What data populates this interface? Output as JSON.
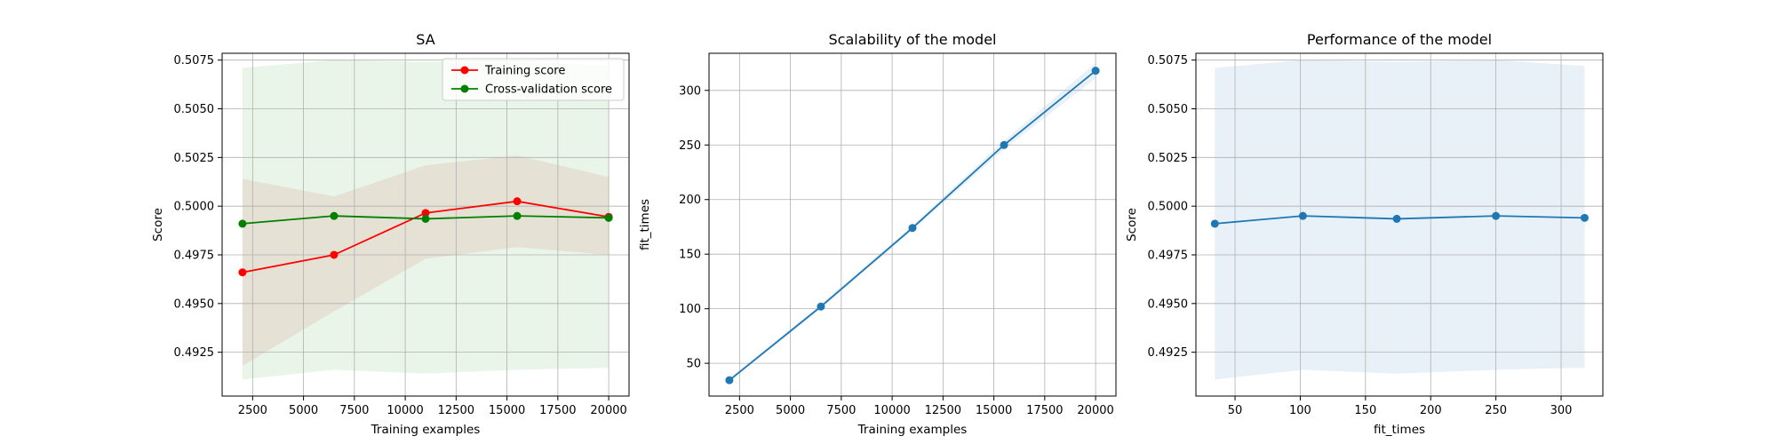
{
  "chart_data": [
    {
      "type": "line",
      "title": "SA",
      "xlabel": "Training examples",
      "ylabel": "Score",
      "xlim": [
        1000,
        21000
      ],
      "ylim": [
        0.49025,
        0.50785
      ],
      "xticks": [
        2500,
        5000,
        7500,
        10000,
        12500,
        15000,
        17500,
        20000
      ],
      "xtick_labels": [
        "2500",
        "5000",
        "7500",
        "10000",
        "12500",
        "15000",
        "17500",
        "20000"
      ],
      "yticks": [
        0.4925,
        0.495,
        0.4975,
        0.5,
        0.5025,
        0.505,
        0.5075
      ],
      "ytick_labels": [
        "0.4925",
        "0.4950",
        "0.4975",
        "0.5000",
        "0.5025",
        "0.5050",
        "0.5075"
      ],
      "grid": true,
      "legend": "top-right",
      "x": [
        2000,
        6500,
        11000,
        15500,
        20000
      ],
      "series": [
        {
          "name": "Training score",
          "color": "#ff0000",
          "band_color": "#d62728",
          "values": [
            0.4966,
            0.4975,
            0.49965,
            0.50025,
            0.49945
          ],
          "band_low": [
            0.4918,
            0.4946,
            0.4973,
            0.4979,
            0.4975
          ],
          "band_high": [
            0.5014,
            0.5005,
            0.5021,
            0.5026,
            0.5015
          ]
        },
        {
          "name": "Cross-validation score",
          "color": "#008000",
          "band_color": "#2ca02c",
          "values": [
            0.4991,
            0.4995,
            0.49935,
            0.4995,
            0.4994
          ],
          "band_low": [
            0.4911,
            0.4916,
            0.4914,
            0.4916,
            0.4917
          ],
          "band_high": [
            0.5071,
            0.5075,
            0.5074,
            0.5075,
            0.5072
          ]
        }
      ]
    },
    {
      "type": "line",
      "title": "Scalability of the model",
      "xlabel": "Training examples",
      "ylabel": "fit_times",
      "xlim": [
        1000,
        21000
      ],
      "ylim": [
        20,
        334
      ],
      "xticks": [
        2500,
        5000,
        7500,
        10000,
        12500,
        15000,
        17500,
        20000
      ],
      "xtick_labels": [
        "2500",
        "5000",
        "7500",
        "10000",
        "12500",
        "15000",
        "17500",
        "20000"
      ],
      "yticks": [
        50,
        100,
        150,
        200,
        250,
        300
      ],
      "ytick_labels": [
        "50",
        "100",
        "150",
        "200",
        "250",
        "300"
      ],
      "grid": true,
      "x": [
        2000,
        6500,
        11000,
        15500,
        20000
      ],
      "series": [
        {
          "color": "#1f77b4",
          "values": [
            34.5,
            102,
            174,
            250,
            318
          ],
          "band_low": [
            33,
            100,
            172,
            246,
            311
          ],
          "band_high": [
            36,
            104,
            176,
            254,
            325
          ]
        }
      ]
    },
    {
      "type": "line",
      "title": "Performance of the model",
      "xlabel": "fit_times",
      "ylabel": "Score",
      "xlim": [
        20,
        332
      ],
      "ylim": [
        0.49025,
        0.50785
      ],
      "xticks": [
        50,
        100,
        150,
        200,
        250,
        300
      ],
      "xtick_labels": [
        "50",
        "100",
        "150",
        "200",
        "250",
        "300"
      ],
      "yticks": [
        0.4925,
        0.495,
        0.4975,
        0.5,
        0.5025,
        0.505,
        0.5075
      ],
      "ytick_labels": [
        "0.4925",
        "0.4950",
        "0.4975",
        "0.5000",
        "0.5025",
        "0.5050",
        "0.5075"
      ],
      "grid": true,
      "x": [
        34.5,
        102,
        174,
        250,
        318
      ],
      "series": [
        {
          "color": "#1f77b4",
          "values": [
            0.4991,
            0.4995,
            0.49935,
            0.4995,
            0.4994
          ],
          "band_low": [
            0.4911,
            0.4916,
            0.4914,
            0.4916,
            0.4917
          ],
          "band_high": [
            0.5071,
            0.5075,
            0.5074,
            0.5075,
            0.5072
          ]
        }
      ]
    }
  ]
}
